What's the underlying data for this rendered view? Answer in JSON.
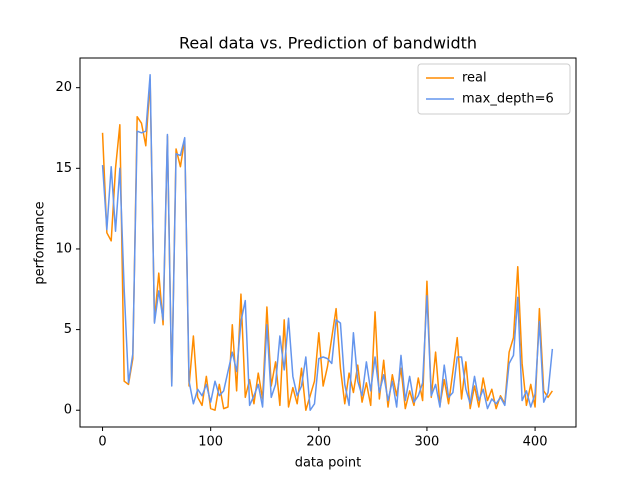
{
  "chart_data": {
    "type": "line",
    "title": "Real data vs. Prediction of bandwidth",
    "x_label": "data point",
    "y_label": "performance",
    "x": [
      0,
      4,
      8,
      12,
      16,
      20,
      24,
      28,
      32,
      36,
      40,
      44,
      48,
      52,
      56,
      60,
      64,
      68,
      72,
      76,
      80,
      84,
      88,
      92,
      96,
      100,
      104,
      108,
      112,
      116,
      120,
      124,
      128,
      132,
      136,
      140,
      144,
      148,
      152,
      156,
      160,
      164,
      168,
      172,
      176,
      180,
      184,
      188,
      192,
      196,
      200,
      204,
      208,
      212,
      216,
      220,
      224,
      228,
      232,
      236,
      240,
      244,
      248,
      252,
      256,
      260,
      264,
      268,
      272,
      276,
      280,
      284,
      288,
      292,
      296,
      300,
      304,
      308,
      312,
      316,
      320,
      324,
      328,
      332,
      336,
      340,
      344,
      348,
      352,
      356,
      360,
      364,
      368,
      372,
      376,
      380,
      384,
      388,
      392,
      396,
      400,
      404,
      408,
      412,
      416
    ],
    "series": [
      {
        "name": "real",
        "color": "#ff8c00",
        "values": [
          17.2,
          11.0,
          10.5,
          15.0,
          17.7,
          1.8,
          1.6,
          3.2,
          18.2,
          17.8,
          16.4,
          20.5,
          5.5,
          8.5,
          5.3,
          17.0,
          1.6,
          16.2,
          15.1,
          16.8,
          1.5,
          4.6,
          0.8,
          0.3,
          2.1,
          0.1,
          0.0,
          1.6,
          0.1,
          0.2,
          5.3,
          1.2,
          7.2,
          0.8,
          1.9,
          0.4,
          2.3,
          0.7,
          6.4,
          1.5,
          3.0,
          0.3,
          5.6,
          0.2,
          1.4,
          0.4,
          2.6,
          0.0,
          0.9,
          1.8,
          4.8,
          1.5,
          2.7,
          4.5,
          6.3,
          2.6,
          0.4,
          2.3,
          1.1,
          2.8,
          0.5,
          1.7,
          0.3,
          6.1,
          0.7,
          3.1,
          0.2,
          2.2,
          0.9,
          2.6,
          0.1,
          1.2,
          0.3,
          2.0,
          0.6,
          8.0,
          0.8,
          3.6,
          0.3,
          1.9,
          0.4,
          2.4,
          4.5,
          0.7,
          3.0,
          0.1,
          1.5,
          0.2,
          2.0,
          0.6,
          1.3,
          0.1,
          0.9,
          0.4,
          3.6,
          4.5,
          8.9,
          2.9,
          0.3,
          1.6,
          0.2,
          6.3,
          1.2,
          0.8,
          1.2
        ]
      },
      {
        "name": "max_depth=6",
        "color": "#6495ed",
        "values": [
          15.2,
          11.2,
          15.1,
          11.1,
          15.0,
          7.5,
          1.7,
          3.5,
          17.3,
          17.2,
          17.3,
          20.8,
          5.4,
          7.4,
          5.6,
          17.1,
          1.5,
          15.9,
          15.8,
          16.9,
          1.8,
          0.4,
          1.3,
          0.9,
          1.6,
          0.5,
          1.8,
          0.9,
          1.2,
          2.4,
          3.6,
          2.4,
          5.5,
          6.8,
          0.3,
          0.9,
          1.6,
          0.2,
          5.3,
          0.8,
          1.6,
          4.6,
          2.5,
          5.7,
          2.1,
          0.9,
          1.5,
          3.3,
          0.0,
          0.4,
          3.2,
          3.3,
          3.2,
          2.9,
          5.6,
          5.4,
          1.6,
          0.3,
          4.8,
          1.8,
          0.9,
          3.0,
          1.2,
          3.3,
          1.1,
          2.2,
          0.6,
          1.8,
          0.2,
          3.4,
          0.6,
          2.1,
          0.5,
          0.9,
          1.7,
          7.1,
          0.9,
          1.6,
          0.2,
          2.8,
          0.8,
          1.1,
          3.3,
          3.3,
          1.3,
          0.4,
          2.1,
          0.6,
          1.3,
          0.1,
          0.7,
          0.4,
          0.8,
          0.3,
          2.9,
          3.4,
          7.0,
          0.6,
          1.2,
          0.2,
          1.0,
          5.5,
          0.5,
          1.1,
          3.8
        ]
      }
    ],
    "xlim": [
      -20.85,
      437.85
    ],
    "ylim": [
      -1.04,
      21.84
    ],
    "xticks": [
      0,
      100,
      200,
      300,
      400
    ],
    "yticks": [
      0,
      5,
      10,
      15,
      20
    ],
    "legend": "upper right"
  }
}
